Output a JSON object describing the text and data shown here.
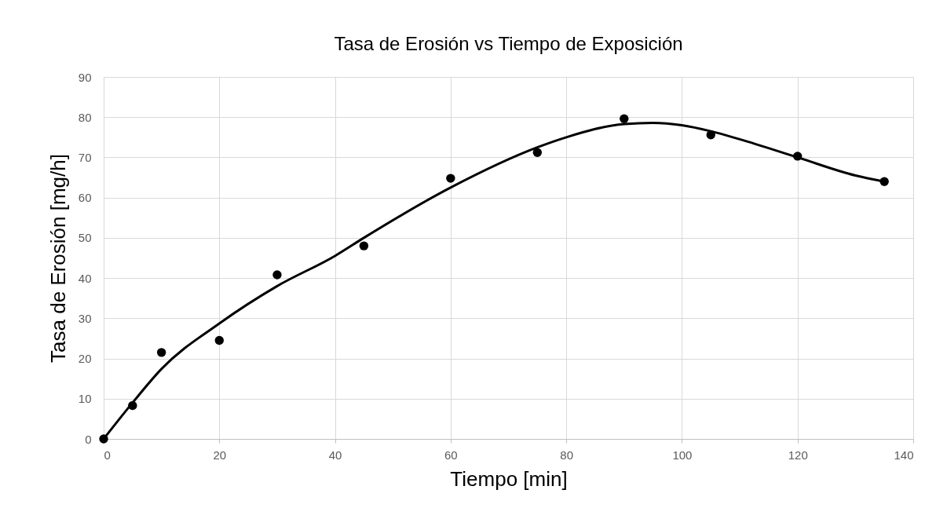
{
  "chart_data": {
    "type": "scatter",
    "title": "Tasa de Erosión vs Tiempo de Exposición",
    "xlabel": "Tiempo [min]",
    "ylabel": "Tasa de Erosión [mg/h]",
    "xlim": [
      0,
      140
    ],
    "xticks": [
      0,
      20,
      40,
      60,
      80,
      100,
      120,
      140
    ],
    "ylim": [
      0,
      90
    ],
    "yticks": [
      0,
      10,
      20,
      30,
      40,
      50,
      60,
      70,
      80,
      90
    ],
    "grid": true,
    "marker": "circle",
    "series": [
      {
        "color": "#000000",
        "x": [
          0,
          5,
          10,
          20,
          30,
          45,
          60,
          75,
          90,
          105,
          120,
          135
        ],
        "values": [
          0,
          8.3,
          21.5,
          24.5,
          40.8,
          48,
          64.8,
          71.2,
          79.6,
          75.6,
          70.3,
          64
        ]
      },
      {
        "type": "line",
        "color": "#000000",
        "line_style": "solid",
        "marker": "none",
        "x": [
          0,
          5,
          10,
          20,
          30,
          40,
          45,
          60,
          75,
          80,
          90,
          95,
          100,
          105,
          110,
          120,
          130,
          135
        ],
        "values": [
          0,
          9,
          17.4,
          28.7,
          38,
          45.5,
          50,
          62.5,
          72.5,
          75,
          78.3,
          78.6,
          78,
          76.5,
          74.5,
          70,
          65.5,
          64
        ]
      }
    ]
  }
}
